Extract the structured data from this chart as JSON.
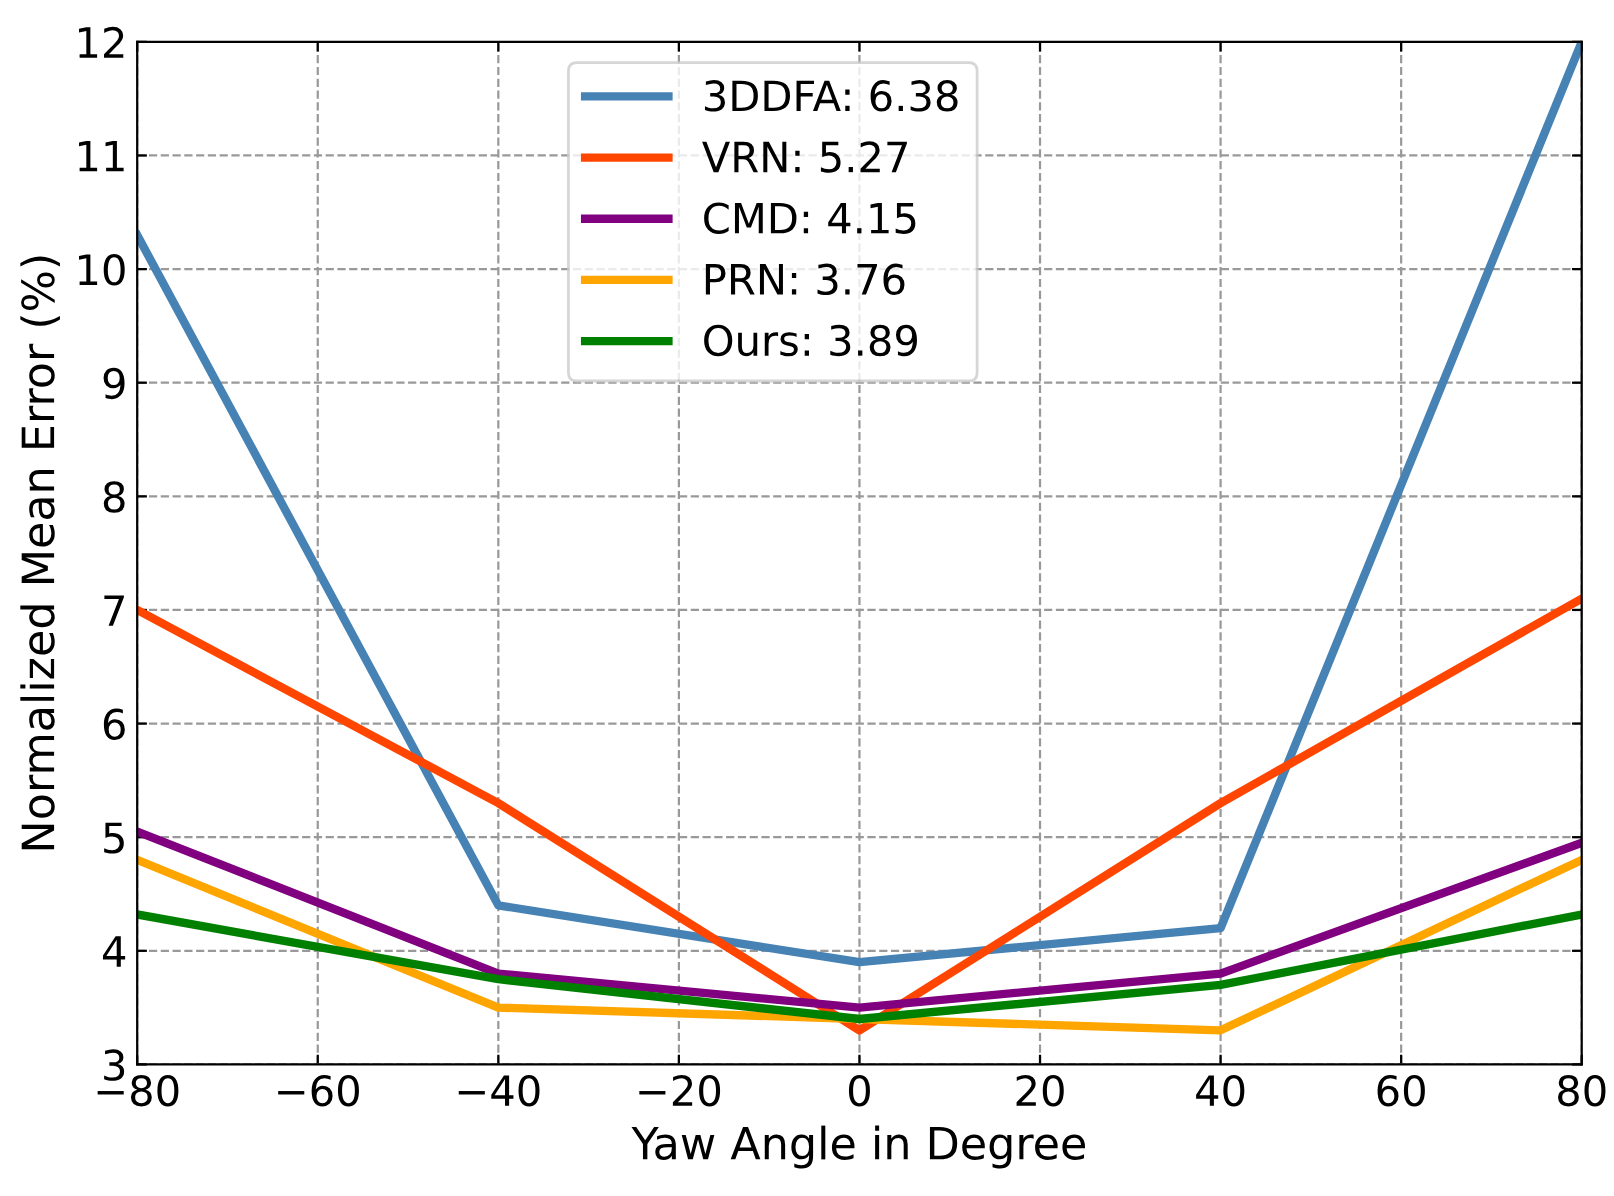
{
  "chart_data": {
    "type": "line",
    "xlabel": "Yaw Angle in Degree",
    "ylabel": "Normalized Mean Error (%)",
    "x": [
      -80,
      -40,
      0,
      40,
      80
    ],
    "series": [
      {
        "name": "3DDFA: 6.38",
        "color": "#4682b4",
        "values": [
          10.3,
          4.4,
          3.9,
          4.2,
          12
        ]
      },
      {
        "name": "VRN: 5.27",
        "color": "#ff4500",
        "values": [
          7.0,
          5.3,
          3.3,
          5.3,
          7.1
        ]
      },
      {
        "name": "CMD: 4.15",
        "color": "#800080",
        "values": [
          5.05,
          3.8,
          3.5,
          3.8,
          4.95
        ]
      },
      {
        "name": "PRN: 3.76",
        "color": "#ffa500",
        "values": [
          4.8,
          3.5,
          3.4,
          3.3,
          4.8
        ]
      },
      {
        "name": "Ours: 3.89",
        "color": "#008000",
        "values": [
          4.32,
          3.75,
          3.4,
          3.7,
          4.32
        ]
      }
    ],
    "xlim": [
      -80,
      80
    ],
    "xticks": [
      {
        "value": -80,
        "label": "−80"
      },
      {
        "value": -60,
        "label": "−60"
      },
      {
        "value": -40,
        "label": "−40"
      },
      {
        "value": -20,
        "label": "−20"
      },
      0,
      20,
      40,
      60,
      80
    ],
    "ylim": [
      3,
      12
    ],
    "yticks": [
      3,
      4,
      5,
      6,
      7,
      8,
      9,
      10,
      11,
      12
    ],
    "grid": true,
    "legend": "top",
    "marker": "none",
    "line_style": "solid"
  }
}
